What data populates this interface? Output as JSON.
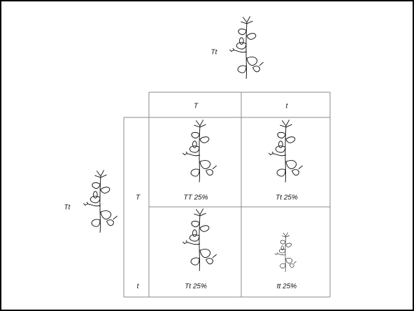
{
  "parents": {
    "top": {
      "label": "Tt"
    },
    "left": {
      "label": "Tt"
    }
  },
  "columns": [
    "T",
    "t"
  ],
  "rows": [
    "T",
    "t"
  ],
  "cells": [
    [
      "TT 25%",
      "Tt 25%"
    ],
    [
      "Tt 25%",
      "tt 25%"
    ]
  ]
}
